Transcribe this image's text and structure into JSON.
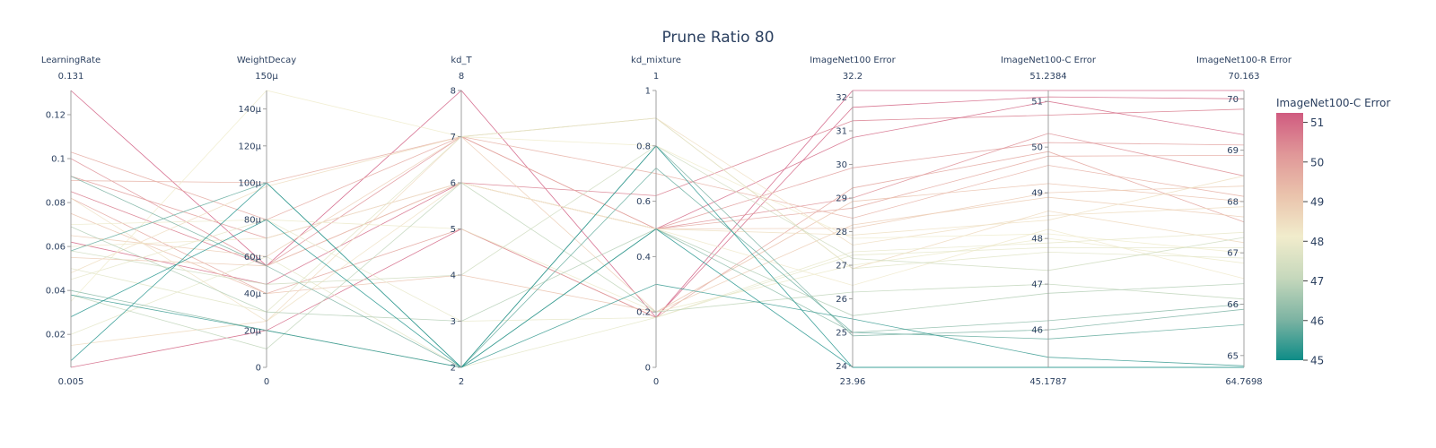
{
  "chart_data": {
    "type": "parallel_coordinates",
    "title": "Prune Ratio 80",
    "color_dimension": "ImageNet100-C Error",
    "colorbar": {
      "title": "ImageNet100-C Error",
      "range": [
        45,
        51.2384
      ],
      "ticks": [
        "45",
        "46",
        "47",
        "48",
        "49",
        "50",
        "51"
      ],
      "colors": [
        "#0e8c87",
        "#7eb4a3",
        "#c6d8bc",
        "#f1eccc",
        "#eac3ac",
        "#e09798",
        "#d05b80"
      ]
    },
    "dimensions": [
      {
        "label": "LearningRate",
        "range": [
          0.005,
          0.131
        ],
        "top_label": "0.131",
        "bottom_label": "0.005",
        "ticks": [
          {
            "v": 0.02,
            "t": "0.02"
          },
          {
            "v": 0.04,
            "t": "0.04"
          },
          {
            "v": 0.06,
            "t": "0.06"
          },
          {
            "v": 0.08,
            "t": "0.08"
          },
          {
            "v": 0.1,
            "t": "0.1"
          },
          {
            "v": 0.12,
            "t": "0.12"
          }
        ]
      },
      {
        "label": "WeightDecay",
        "range": [
          0,
          150
        ],
        "top_label": "150μ",
        "bottom_label": "0",
        "ticks": [
          {
            "v": 0,
            "t": "0"
          },
          {
            "v": 20,
            "t": "20μ"
          },
          {
            "v": 40,
            "t": "40μ"
          },
          {
            "v": 60,
            "t": "60μ"
          },
          {
            "v": 80,
            "t": "80μ"
          },
          {
            "v": 100,
            "t": "100μ"
          },
          {
            "v": 120,
            "t": "120μ"
          },
          {
            "v": 140,
            "t": "140μ"
          }
        ]
      },
      {
        "label": "kd_T",
        "range": [
          2,
          8
        ],
        "top_label": "8",
        "bottom_label": "2",
        "ticks": [
          {
            "v": 2,
            "t": "2"
          },
          {
            "v": 3,
            "t": "3"
          },
          {
            "v": 4,
            "t": "4"
          },
          {
            "v": 5,
            "t": "5"
          },
          {
            "v": 6,
            "t": "6"
          },
          {
            "v": 7,
            "t": "7"
          },
          {
            "v": 8,
            "t": "8"
          }
        ]
      },
      {
        "label": "kd_mixture",
        "range": [
          0,
          1
        ],
        "top_label": "1",
        "bottom_label": "0",
        "ticks": [
          {
            "v": 0,
            "t": "0"
          },
          {
            "v": 0.2,
            "t": "0.2"
          },
          {
            "v": 0.4,
            "t": "0.4"
          },
          {
            "v": 0.6,
            "t": "0.6"
          },
          {
            "v": 0.8,
            "t": "0.8"
          },
          {
            "v": 1,
            "t": "1"
          }
        ]
      },
      {
        "label": "ImageNet100 Error",
        "range": [
          23.96,
          32.2
        ],
        "top_label": "32.2",
        "bottom_label": "23.96",
        "ticks": [
          {
            "v": 24,
            "t": "24"
          },
          {
            "v": 25,
            "t": "25"
          },
          {
            "v": 26,
            "t": "26"
          },
          {
            "v": 27,
            "t": "27"
          },
          {
            "v": 28,
            "t": "28"
          },
          {
            "v": 29,
            "t": "29"
          },
          {
            "v": 30,
            "t": "30"
          },
          {
            "v": 31,
            "t": "31"
          },
          {
            "v": 32,
            "t": "32"
          }
        ]
      },
      {
        "label": "ImageNet100-C Error",
        "range": [
          45.1787,
          51.2384
        ],
        "top_label": "51.2384",
        "bottom_label": "45.1787",
        "ticks": [
          {
            "v": 46,
            "t": "46"
          },
          {
            "v": 47,
            "t": "47"
          },
          {
            "v": 48,
            "t": "48"
          },
          {
            "v": 49,
            "t": "49"
          },
          {
            "v": 50,
            "t": "50"
          },
          {
            "v": 51,
            "t": "51"
          }
        ]
      },
      {
        "label": "ImageNet100-R Error",
        "range": [
          64.7698,
          70.163
        ],
        "top_label": "70.163",
        "bottom_label": "64.7698",
        "ticks": [
          {
            "v": 65,
            "t": "65"
          },
          {
            "v": 66,
            "t": "66"
          },
          {
            "v": 67,
            "t": "67"
          },
          {
            "v": 68,
            "t": "68"
          },
          {
            "v": 69,
            "t": "69"
          },
          {
            "v": 70,
            "t": "70"
          }
        ]
      }
    ],
    "rows": [
      [
        0.131,
        55,
        8,
        0.18,
        32.2,
        51.2384,
        70.163
      ],
      [
        0.085,
        55,
        6,
        0.62,
        31.3,
        50.7,
        69.8
      ],
      [
        0.062,
        45,
        6,
        0.5,
        30.8,
        51.0,
        69.3
      ],
      [
        0.005,
        20,
        5,
        0.18,
        31.7,
        51.1,
        70.0
      ],
      [
        0.092,
        70,
        6,
        0.5,
        29.9,
        50.1,
        69.1
      ],
      [
        0.1,
        55,
        7,
        0.5,
        29.0,
        50.3,
        68.5
      ],
      [
        0.103,
        80,
        7,
        0.5,
        28.7,
        49.8,
        68.9
      ],
      [
        0.09,
        100,
        7,
        0.7,
        28.4,
        49.6,
        68.1
      ],
      [
        0.082,
        40,
        5,
        0.18,
        29.3,
        49.9,
        67.6
      ],
      [
        0.075,
        40,
        4,
        0.2,
        28.9,
        49.2,
        68.0
      ],
      [
        0.055,
        55,
        6,
        0.5,
        28.1,
        49.0,
        68.3
      ],
      [
        0.048,
        98,
        7,
        0.9,
        27.6,
        48.5,
        67.9
      ],
      [
        0.065,
        60,
        7,
        0.2,
        28.2,
        48.9,
        67.7
      ],
      [
        0.015,
        25,
        7,
        0.9,
        26.9,
        48.6,
        67.2
      ],
      [
        0.035,
        150,
        7,
        0.8,
        27.8,
        48.1,
        67.0
      ],
      [
        0.082,
        25,
        6,
        0.5,
        27.9,
        48.4,
        68.5
      ],
      [
        0.07,
        80,
        5,
        0.2,
        27.0,
        48.0,
        66.8
      ],
      [
        0.045,
        80,
        3,
        0.18,
        27.4,
        47.9,
        67.4
      ],
      [
        0.06,
        70,
        6,
        0.5,
        26.4,
        48.2,
        66.5
      ],
      [
        0.02,
        60,
        2,
        0.18,
        27.3,
        47.8,
        67.1
      ],
      [
        0.05,
        30,
        7,
        0.9,
        26.9,
        47.7,
        66.9
      ],
      [
        0.058,
        45,
        4,
        0.8,
        27.2,
        47.3,
        67.3
      ],
      [
        0.038,
        10,
        6,
        0.2,
        26.2,
        47.0,
        66.1
      ],
      [
        0.069,
        30,
        3,
        0.5,
        25.5,
        46.8,
        66.4
      ],
      [
        0.04,
        20,
        2,
        0.5,
        25.0,
        46.2,
        66.0
      ],
      [
        0.092,
        55,
        2,
        0.8,
        24.9,
        46.0,
        65.9
      ],
      [
        0.058,
        100,
        2,
        0.72,
        25.0,
        45.8,
        65.6
      ],
      [
        0.038,
        20,
        2,
        0.3,
        25.4,
        45.4,
        64.8
      ],
      [
        0.028,
        80,
        2,
        0.8,
        23.96,
        45.1787,
        64.7698
      ],
      [
        0.008,
        100,
        2,
        0.5,
        23.96,
        45.1787,
        64.7698
      ]
    ]
  }
}
